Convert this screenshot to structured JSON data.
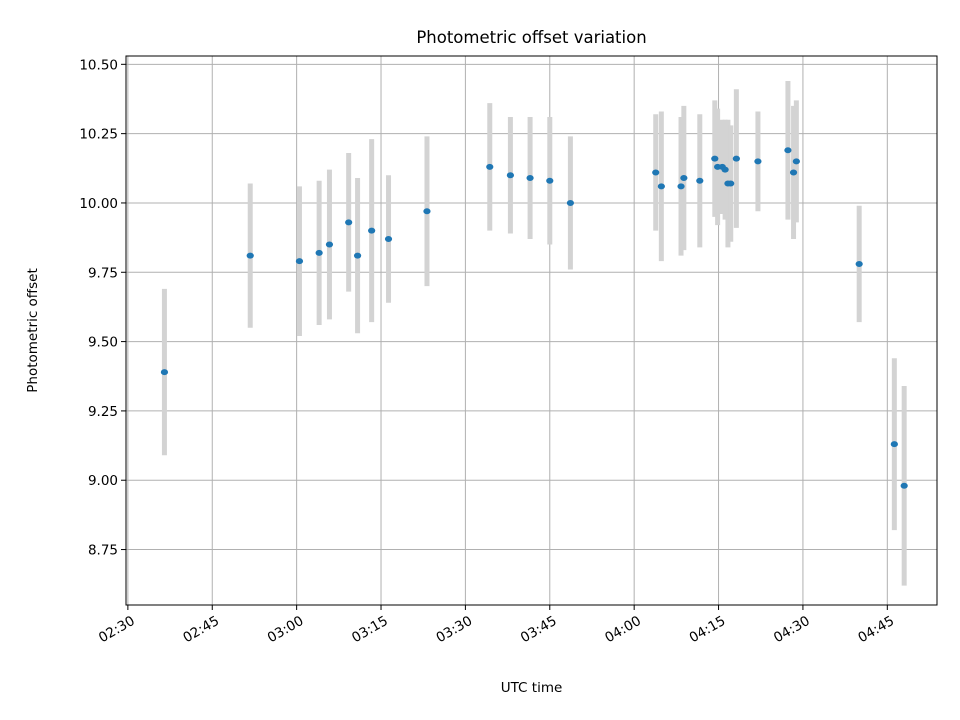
{
  "chart_data": {
    "type": "scatter",
    "title": "Photometric offset variation",
    "xlabel": "UTC time",
    "ylabel": "Photometric offset",
    "x_ticks": [
      "02:30",
      "02:45",
      "03:00",
      "03:15",
      "03:30",
      "03:45",
      "04:00",
      "04:15",
      "04:30",
      "04:45"
    ],
    "y_ticks": [
      "8.75",
      "9.00",
      "9.25",
      "9.50",
      "9.75",
      "10.00",
      "10.25",
      "10.50"
    ],
    "xlim": [
      "02:29:40",
      "04:53:50"
    ],
    "ylim": [
      8.55,
      10.53
    ],
    "grid": true,
    "colors": {
      "points": "#1f77b4",
      "error_bars": "#d3d3d3",
      "grid": "#b0b0b0"
    },
    "points": [
      {
        "x": "02:36:30",
        "y": 9.39,
        "err": 0.3
      },
      {
        "x": "02:51:45",
        "y": 9.81,
        "err": 0.26
      },
      {
        "x": "03:00:30",
        "y": 9.79,
        "err": 0.27
      },
      {
        "x": "03:04:00",
        "y": 9.82,
        "err": 0.26
      },
      {
        "x": "03:05:50",
        "y": 9.85,
        "err": 0.27
      },
      {
        "x": "03:09:15",
        "y": 9.93,
        "err": 0.25
      },
      {
        "x": "03:10:50",
        "y": 9.81,
        "err": 0.28
      },
      {
        "x": "03:13:20",
        "y": 9.9,
        "err": 0.33
      },
      {
        "x": "03:16:20",
        "y": 9.87,
        "err": 0.23
      },
      {
        "x": "03:23:10",
        "y": 9.97,
        "err": 0.27
      },
      {
        "x": "03:34:20",
        "y": 10.13,
        "err": 0.23
      },
      {
        "x": "03:38:00",
        "y": 10.1,
        "err": 0.21
      },
      {
        "x": "03:41:30",
        "y": 10.09,
        "err": 0.22
      },
      {
        "x": "03:45:00",
        "y": 10.08,
        "err": 0.23
      },
      {
        "x": "03:48:40",
        "y": 10.0,
        "err": 0.24
      },
      {
        "x": "04:03:50",
        "y": 10.11,
        "err": 0.21
      },
      {
        "x": "04:04:50",
        "y": 10.06,
        "err": 0.27
      },
      {
        "x": "04:08:20",
        "y": 10.06,
        "err": 0.25
      },
      {
        "x": "04:08:50",
        "y": 10.09,
        "err": 0.26
      },
      {
        "x": "04:11:40",
        "y": 10.08,
        "err": 0.24
      },
      {
        "x": "04:14:20",
        "y": 10.16,
        "err": 0.21
      },
      {
        "x": "04:14:50",
        "y": 10.13,
        "err": 0.21
      },
      {
        "x": "04:15:40",
        "y": 10.13,
        "err": 0.17
      },
      {
        "x": "04:16:10",
        "y": 10.12,
        "err": 0.18
      },
      {
        "x": "04:16:40",
        "y": 10.07,
        "err": 0.23
      },
      {
        "x": "04:17:10",
        "y": 10.07,
        "err": 0.21
      },
      {
        "x": "04:18:10",
        "y": 10.16,
        "err": 0.25
      },
      {
        "x": "04:22:00",
        "y": 10.15,
        "err": 0.18
      },
      {
        "x": "04:27:20",
        "y": 10.19,
        "err": 0.25
      },
      {
        "x": "04:28:20",
        "y": 10.11,
        "err": 0.24
      },
      {
        "x": "04:28:50",
        "y": 10.15,
        "err": 0.22
      },
      {
        "x": "04:40:00",
        "y": 9.78,
        "err": 0.21
      },
      {
        "x": "04:46:15",
        "y": 9.13,
        "err": 0.31
      },
      {
        "x": "04:48:00",
        "y": 8.98,
        "err": 0.36
      }
    ]
  }
}
